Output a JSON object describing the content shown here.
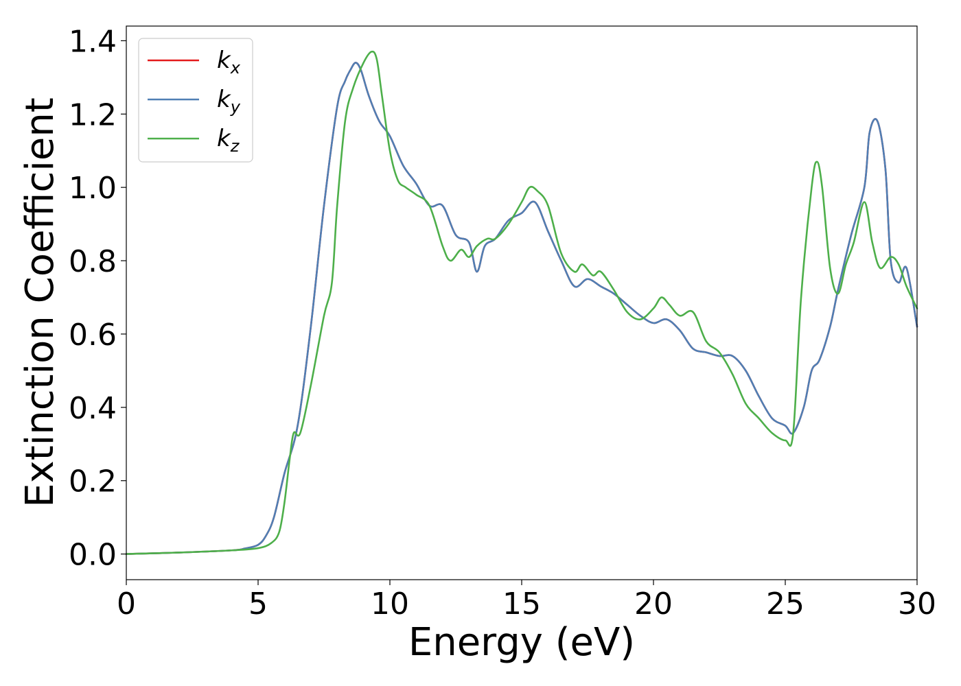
{
  "chart_data": {
    "type": "line",
    "title": "",
    "xlabel": "Energy (eV)",
    "ylabel": "Extinction Coefficient",
    "xlim": [
      0,
      30
    ],
    "ylim": [
      -0.07,
      1.44
    ],
    "xticks": [
      0,
      5,
      10,
      15,
      20,
      25,
      30
    ],
    "xtick_labels": [
      "0",
      "5",
      "10",
      "15",
      "20",
      "25",
      "30"
    ],
    "yticks": [
      0.0,
      0.2,
      0.4,
      0.6,
      0.8,
      1.0,
      1.2,
      1.4
    ],
    "ytick_labels": [
      "0.0",
      "0.2",
      "0.4",
      "0.6",
      "0.8",
      "1.0",
      "1.2",
      "1.4"
    ],
    "grid": false,
    "legend_position": "top-left",
    "series": [
      {
        "name": "k_x",
        "label_main": "k",
        "label_sub": "x",
        "color": "#e41a1c",
        "x": [
          0,
          2,
          4,
          4.5,
          5,
          5.3,
          5.6,
          6,
          6.5,
          7,
          7.5,
          8,
          8.3,
          8.5,
          8.7,
          8.9,
          9.2,
          9.6,
          10,
          10.5,
          11,
          11.5,
          12,
          12.5,
          13,
          13.3,
          13.6,
          14,
          14.5,
          15,
          15.5,
          16,
          16.5,
          17,
          17.5,
          18,
          18.5,
          19,
          19.5,
          20,
          20.5,
          21,
          21.5,
          22,
          22.5,
          23,
          23.5,
          24,
          24.5,
          25,
          25.3,
          25.7,
          26,
          26.3,
          26.7,
          27,
          27.5,
          28,
          28.2,
          28.5,
          28.8,
          29,
          29.3,
          29.6,
          30
        ],
        "y": [
          0.0,
          0.004,
          0.01,
          0.015,
          0.025,
          0.05,
          0.1,
          0.22,
          0.35,
          0.62,
          0.95,
          1.22,
          1.29,
          1.32,
          1.34,
          1.32,
          1.25,
          1.18,
          1.14,
          1.06,
          1.01,
          0.95,
          0.95,
          0.87,
          0.85,
          0.77,
          0.84,
          0.86,
          0.91,
          0.93,
          0.96,
          0.88,
          0.8,
          0.73,
          0.75,
          0.73,
          0.71,
          0.68,
          0.65,
          0.63,
          0.64,
          0.61,
          0.56,
          0.55,
          0.54,
          0.54,
          0.5,
          0.43,
          0.37,
          0.35,
          0.33,
          0.4,
          0.5,
          0.53,
          0.62,
          0.72,
          0.87,
          1.0,
          1.15,
          1.18,
          1.05,
          0.8,
          0.74,
          0.78,
          0.62
        ]
      },
      {
        "name": "k_y",
        "label_main": "k",
        "label_sub": "y",
        "color": "#4f7fb4",
        "x": [
          0,
          2,
          4,
          4.5,
          5,
          5.3,
          5.6,
          6,
          6.5,
          7,
          7.5,
          8,
          8.3,
          8.5,
          8.7,
          8.9,
          9.2,
          9.6,
          10,
          10.5,
          11,
          11.5,
          12,
          12.5,
          13,
          13.3,
          13.6,
          14,
          14.5,
          15,
          15.5,
          16,
          16.5,
          17,
          17.5,
          18,
          18.5,
          19,
          19.5,
          20,
          20.5,
          21,
          21.5,
          22,
          22.5,
          23,
          23.5,
          24,
          24.5,
          25,
          25.3,
          25.7,
          26,
          26.3,
          26.7,
          27,
          27.5,
          28,
          28.2,
          28.5,
          28.8,
          29,
          29.3,
          29.6,
          30
        ],
        "y": [
          0.0,
          0.004,
          0.01,
          0.015,
          0.025,
          0.05,
          0.1,
          0.22,
          0.35,
          0.62,
          0.95,
          1.22,
          1.29,
          1.32,
          1.34,
          1.32,
          1.25,
          1.18,
          1.14,
          1.06,
          1.01,
          0.95,
          0.95,
          0.87,
          0.85,
          0.77,
          0.84,
          0.86,
          0.91,
          0.93,
          0.96,
          0.88,
          0.8,
          0.73,
          0.75,
          0.73,
          0.71,
          0.68,
          0.65,
          0.63,
          0.64,
          0.61,
          0.56,
          0.55,
          0.54,
          0.54,
          0.5,
          0.43,
          0.37,
          0.35,
          0.33,
          0.4,
          0.5,
          0.53,
          0.62,
          0.72,
          0.87,
          1.0,
          1.15,
          1.18,
          1.05,
          0.8,
          0.74,
          0.78,
          0.62
        ]
      },
      {
        "name": "k_z",
        "label_main": "k",
        "label_sub": "z",
        "color": "#4daf4a",
        "x": [
          0,
          2,
          4,
          5,
          5.5,
          5.8,
          6,
          6.2,
          6.35,
          6.6,
          7,
          7.5,
          7.8,
          8,
          8.3,
          8.6,
          9,
          9.3,
          9.5,
          9.7,
          10,
          10.3,
          10.6,
          11,
          11.5,
          12,
          12.3,
          12.7,
          13,
          13.3,
          13.7,
          14,
          14.5,
          15,
          15.3,
          15.6,
          16,
          16.5,
          17,
          17.3,
          17.7,
          18,
          18.5,
          19,
          19.5,
          20,
          20.3,
          20.6,
          21,
          21.5,
          22,
          22.5,
          23,
          23.5,
          24,
          24.5,
          25,
          25.3,
          25.6,
          26,
          26.2,
          26.4,
          26.7,
          27,
          27.3,
          27.6,
          28,
          28.3,
          28.6,
          29,
          29.3,
          29.6,
          30
        ],
        "y": [
          0.0,
          0.004,
          0.01,
          0.016,
          0.03,
          0.06,
          0.14,
          0.26,
          0.33,
          0.33,
          0.46,
          0.65,
          0.74,
          0.95,
          1.18,
          1.27,
          1.34,
          1.37,
          1.35,
          1.25,
          1.1,
          1.02,
          1.0,
          0.98,
          0.95,
          0.84,
          0.8,
          0.83,
          0.81,
          0.84,
          0.86,
          0.86,
          0.9,
          0.96,
          1.0,
          0.99,
          0.95,
          0.82,
          0.77,
          0.79,
          0.76,
          0.77,
          0.72,
          0.66,
          0.64,
          0.67,
          0.7,
          0.68,
          0.65,
          0.66,
          0.58,
          0.55,
          0.49,
          0.41,
          0.37,
          0.33,
          0.31,
          0.33,
          0.7,
          1.0,
          1.07,
          1.0,
          0.78,
          0.71,
          0.79,
          0.85,
          0.96,
          0.85,
          0.78,
          0.81,
          0.79,
          0.73,
          0.67
        ]
      }
    ]
  }
}
